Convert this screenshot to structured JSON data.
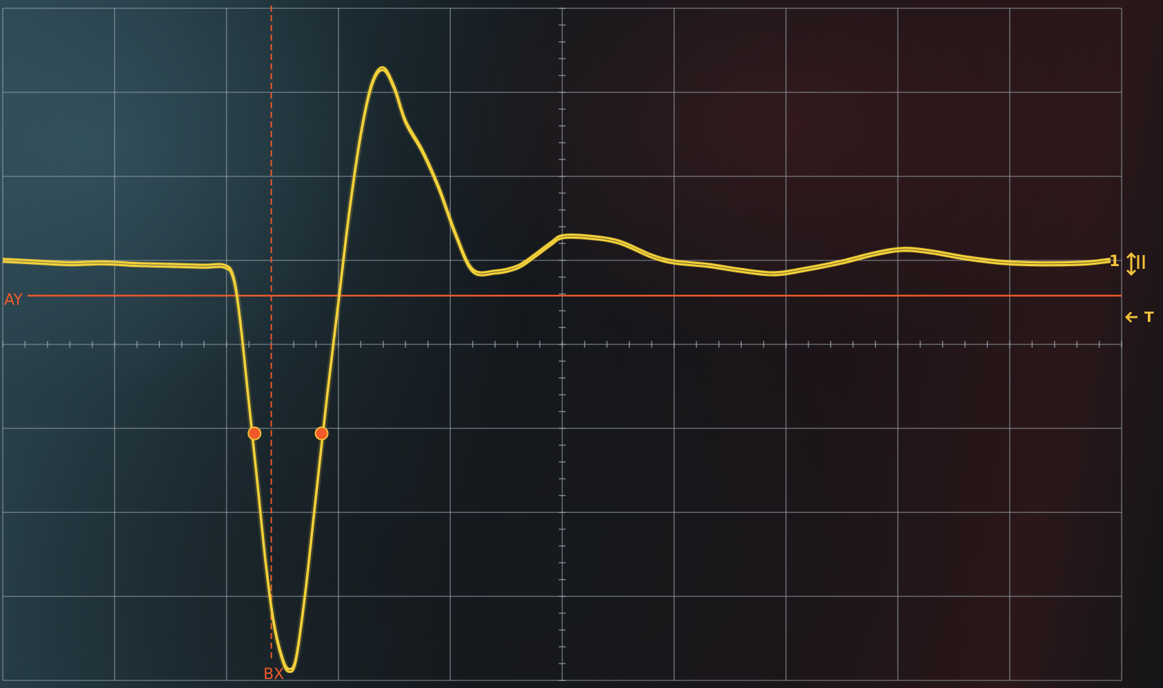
{
  "screen": {
    "cursor_labels": {
      "horizontal": "AY",
      "vertical": "BX"
    },
    "channel_marker": "1",
    "trigger_marker": "T"
  },
  "colors": {
    "trace": "#f3d13a",
    "cursor": "#f05a2a",
    "grid": "#9aa4ad",
    "marker": "#f2c23a"
  },
  "grid": {
    "horizontal_divisions": 10,
    "vertical_divisions": 8
  },
  "icons": {
    "channel_marker_icon": "arrow-up-down-icon",
    "trigger_marker_icon": "arrow-left-icon"
  },
  "chart_data": {
    "type": "line",
    "title": "",
    "xlabel": "",
    "ylabel": "",
    "xlim": [
      0,
      10
    ],
    "ylim": [
      -4,
      4
    ],
    "cursor_levels": {
      "AY": 0.58,
      "BX": 2.4
    },
    "cursor_points": [
      {
        "x": 2.25,
        "y": -1.06
      },
      {
        "x": 2.85,
        "y": -1.06
      }
    ],
    "series": [
      {
        "values": [
          [
            0.0,
            1.0
          ],
          [
            0.3,
            0.98
          ],
          [
            0.6,
            0.96
          ],
          [
            0.9,
            0.97
          ],
          [
            1.2,
            0.95
          ],
          [
            1.5,
            0.94
          ],
          [
            1.8,
            0.93
          ],
          [
            1.98,
            0.93
          ],
          [
            2.06,
            0.8
          ],
          [
            2.12,
            0.3
          ],
          [
            2.2,
            -0.7
          ],
          [
            2.28,
            -1.7
          ],
          [
            2.35,
            -2.6
          ],
          [
            2.42,
            -3.3
          ],
          [
            2.5,
            -3.75
          ],
          [
            2.56,
            -3.88
          ],
          [
            2.62,
            -3.75
          ],
          [
            2.7,
            -3.0
          ],
          [
            2.8,
            -1.8
          ],
          [
            2.9,
            -0.6
          ],
          [
            3.0,
            0.5
          ],
          [
            3.1,
            1.6
          ],
          [
            3.2,
            2.5
          ],
          [
            3.3,
            3.1
          ],
          [
            3.4,
            3.28
          ],
          [
            3.5,
            3.05
          ],
          [
            3.6,
            2.65
          ],
          [
            3.75,
            2.3
          ],
          [
            3.9,
            1.85
          ],
          [
            4.05,
            1.3
          ],
          [
            4.2,
            0.88
          ],
          [
            4.4,
            0.86
          ],
          [
            4.6,
            0.92
          ],
          [
            4.75,
            1.05
          ],
          [
            4.9,
            1.2
          ],
          [
            5.0,
            1.28
          ],
          [
            5.2,
            1.28
          ],
          [
            5.5,
            1.22
          ],
          [
            5.8,
            1.05
          ],
          [
            6.0,
            0.98
          ],
          [
            6.3,
            0.94
          ],
          [
            6.6,
            0.88
          ],
          [
            6.9,
            0.84
          ],
          [
            7.2,
            0.9
          ],
          [
            7.5,
            0.98
          ],
          [
            7.8,
            1.08
          ],
          [
            8.05,
            1.13
          ],
          [
            8.3,
            1.1
          ],
          [
            8.6,
            1.03
          ],
          [
            8.9,
            0.98
          ],
          [
            9.2,
            0.96
          ],
          [
            9.5,
            0.96
          ],
          [
            9.7,
            0.97
          ],
          [
            9.9,
            1.0
          ]
        ]
      }
    ]
  }
}
